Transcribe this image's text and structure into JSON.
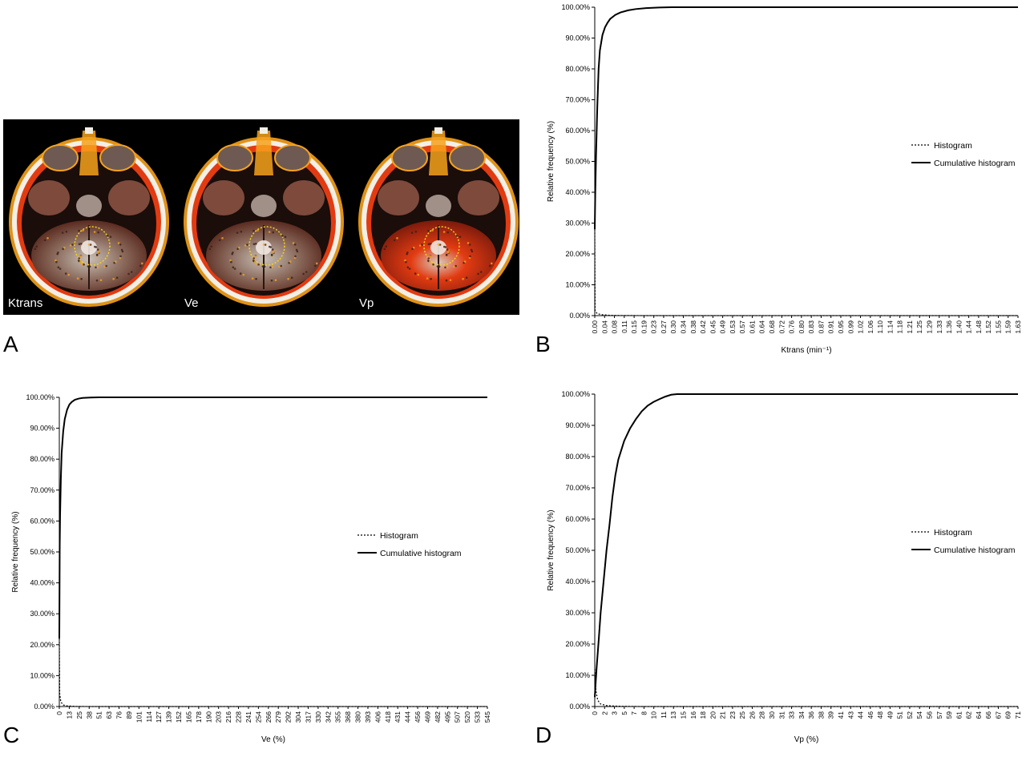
{
  "panel_letters": {
    "a": "A",
    "b": "B",
    "c": "C",
    "d": "D"
  },
  "mri": {
    "labels": [
      "Ktrans",
      "Ve",
      "Vp"
    ],
    "colors": {
      "background": "#000000",
      "hot": "#e23b12",
      "warm": "#f7a21b",
      "skull": "#f2efe6",
      "roi": "#f5d21c"
    }
  },
  "chart_data": [
    {
      "id": "B",
      "type": "line",
      "xlabel": "Ktrans (min⁻¹)",
      "ylabel": "Relative frequency (%)",
      "ylim": [
        0,
        100
      ],
      "yticks": [
        "0.00%",
        "10.00%",
        "20.00%",
        "30.00%",
        "40.00%",
        "50.00%",
        "60.00%",
        "70.00%",
        "80.00%",
        "90.00%",
        "100.00%"
      ],
      "categories": [
        "0.00",
        "0.04",
        "0.08",
        "0.11",
        "0.15",
        "0.19",
        "0.23",
        "0.27",
        "0.30",
        "0.34",
        "0.38",
        "0.42",
        "0.45",
        "0.49",
        "0.53",
        "0.57",
        "0.61",
        "0.64",
        "0.68",
        "0.72",
        "0.76",
        "0.80",
        "0.83",
        "0.87",
        "0.91",
        "0.95",
        "0.99",
        "1.02",
        "1.06",
        "1.10",
        "1.14",
        "1.18",
        "1.21",
        "1.25",
        "1.29",
        "1.33",
        "1.36",
        "1.40",
        "1.44",
        "1.48",
        "1.52",
        "1.55",
        "1.59",
        "1.63"
      ],
      "legend": [
        "Histogram",
        "Cumulative histogram"
      ],
      "series": [
        {
          "name": "Histogram",
          "style": "dotted",
          "x": [
            0,
            0.0015,
            0.01,
            0.03,
            0.06,
            0.1,
            0.2,
            1.0,
            1.65
          ],
          "y": [
            28,
            1.5,
            0.6,
            0.3,
            0.1,
            0.05,
            0,
            0,
            0
          ]
        },
        {
          "name": "Cumulative histogram",
          "style": "solid",
          "x": [
            0,
            0.002,
            0.005,
            0.01,
            0.015,
            0.02,
            0.03,
            0.04,
            0.05,
            0.06,
            0.08,
            0.1,
            0.13,
            0.16,
            0.2,
            0.25,
            0.3,
            0.35,
            1.0,
            1.65
          ],
          "y": [
            28,
            40,
            52,
            68,
            80,
            86,
            91,
            93.5,
            95,
            96.2,
            97.5,
            98.3,
            99,
            99.4,
            99.7,
            99.9,
            100,
            100,
            100,
            100
          ]
        }
      ]
    },
    {
      "id": "C",
      "type": "line",
      "xlabel": "Ve (%)",
      "ylabel": "Relative frequency (%)",
      "ylim": [
        0,
        100
      ],
      "yticks": [
        "0.00%",
        "10.00%",
        "20.00%",
        "30.00%",
        "40.00%",
        "50.00%",
        "60.00%",
        "70.00%",
        "80.00%",
        "90.00%",
        "100.00%"
      ],
      "categories": [
        "0",
        "13",
        "25",
        "38",
        "51",
        "63",
        "76",
        "89",
        "101",
        "114",
        "127",
        "139",
        "152",
        "165",
        "178",
        "190",
        "203",
        "216",
        "228",
        "241",
        "254",
        "266",
        "279",
        "292",
        "304",
        "317",
        "330",
        "342",
        "355",
        "368",
        "380",
        "393",
        "406",
        "418",
        "431",
        "444",
        "456",
        "469",
        "482",
        "495",
        "507",
        "520",
        "533",
        "545"
      ],
      "legend": [
        "Histogram",
        "Cumulative histogram"
      ],
      "series": [
        {
          "name": "Histogram",
          "style": "dotted",
          "x": [
            0,
            0.5,
            2,
            5,
            10,
            20,
            40,
            100,
            550
          ],
          "y": [
            22,
            4,
            1.5,
            0.5,
            0.2,
            0.05,
            0,
            0,
            0
          ]
        },
        {
          "name": "Cumulative histogram",
          "style": "solid",
          "x": [
            0,
            0.5,
            1,
            2,
            3,
            5,
            7,
            10,
            13,
            16,
            20,
            25,
            30,
            40,
            51,
            100,
            550
          ],
          "y": [
            22,
            52,
            62,
            74,
            82,
            89,
            93,
            96,
            97.7,
            98.5,
            99.2,
            99.6,
            99.8,
            99.95,
            100,
            100,
            100
          ]
        }
      ]
    },
    {
      "id": "D",
      "type": "line",
      "xlabel": "Vp (%)",
      "ylabel": "Relative frequency (%)",
      "ylim": [
        0,
        100
      ],
      "yticks": [
        "0.00%",
        "10.00%",
        "20.00%",
        "30.00%",
        "40.00%",
        "50.00%",
        "60.00%",
        "70.00%",
        "80.00%",
        "90.00%",
        "100.00%"
      ],
      "categories": [
        "0",
        "2",
        "3",
        "5",
        "7",
        "8",
        "10",
        "11",
        "13",
        "15",
        "16",
        "18",
        "20",
        "21",
        "23",
        "25",
        "26",
        "28",
        "30",
        "31",
        "33",
        "34",
        "36",
        "38",
        "39",
        "41",
        "43",
        "44",
        "46",
        "48",
        "49",
        "51",
        "52",
        "54",
        "56",
        "57",
        "59",
        "61",
        "62",
        "64",
        "66",
        "67",
        "69",
        "71"
      ],
      "legend": [
        "Histogram",
        "Cumulative histogram"
      ],
      "series": [
        {
          "name": "Histogram",
          "style": "dotted",
          "x": [
            0,
            0.2,
            0.5,
            1,
            2,
            4,
            8,
            20,
            72
          ],
          "y": [
            12,
            5,
            2,
            0.8,
            0.3,
            0.1,
            0,
            0,
            0
          ]
        },
        {
          "name": "Cumulative histogram",
          "style": "solid",
          "x": [
            0,
            0.3,
            0.7,
            1,
            1.5,
            2,
            2.5,
            3,
            3.5,
            4,
            5,
            6,
            7,
            8,
            9,
            10,
            11,
            12,
            13,
            14,
            20,
            72
          ],
          "y": [
            3,
            12,
            22,
            30,
            40,
            50,
            58,
            67,
            74,
            79,
            85,
            89,
            92,
            94.5,
            96.3,
            97.5,
            98.4,
            99.2,
            99.8,
            100,
            100,
            100
          ]
        }
      ]
    }
  ]
}
